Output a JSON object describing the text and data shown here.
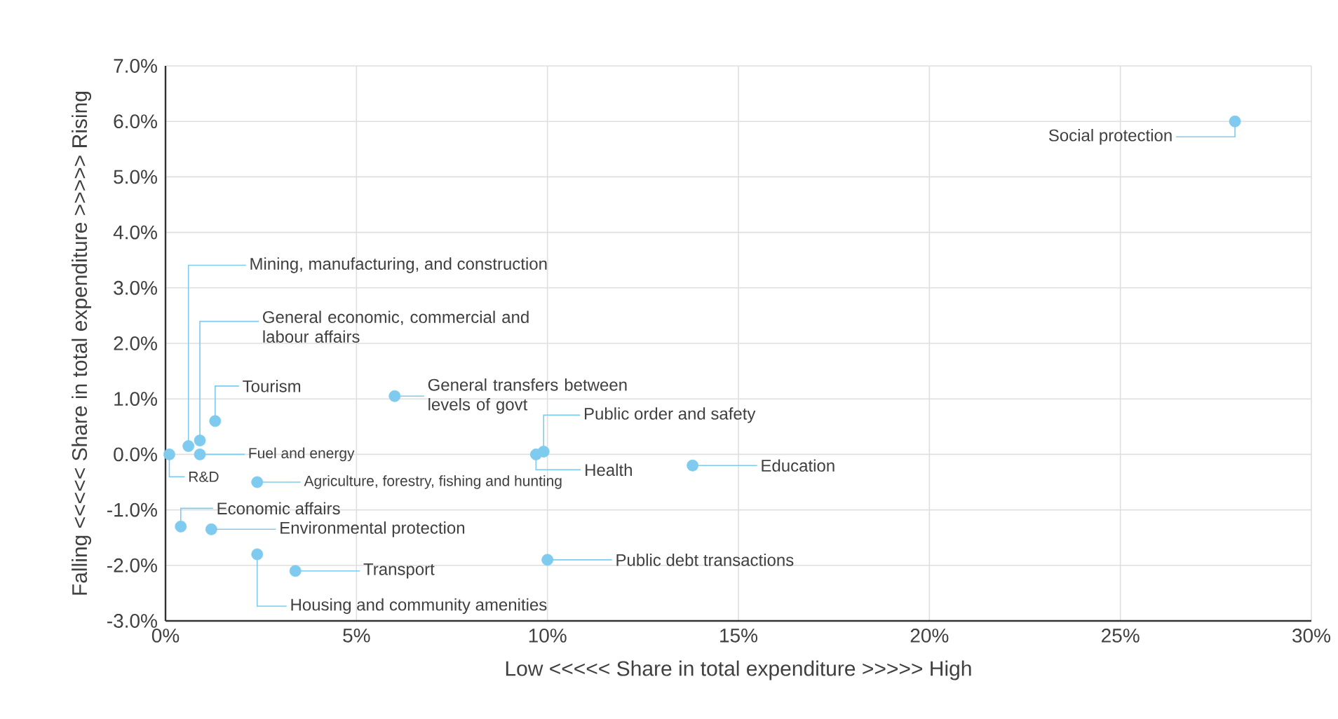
{
  "chart_data": {
    "type": "scatter",
    "xlabel": "Low <<<<< Share in total expenditure >>>>> High",
    "ylabel": "Falling <<<<< Share in total expenditure >>>>> Rising",
    "x": [
      28.0,
      0.6,
      0.9,
      1.3,
      0.9,
      0.1,
      2.4,
      0.4,
      1.2,
      2.4,
      3.4,
      6.0,
      9.9,
      9.7,
      13.8,
      10.0
    ],
    "values": [
      6.0,
      0.15,
      0.25,
      0.6,
      0.0,
      0.0,
      -0.5,
      -1.3,
      -1.35,
      -1.8,
      -2.1,
      1.05,
      0.05,
      0.0,
      -0.2,
      -1.9
    ],
    "color": "#7ecbef",
    "marker": "circle",
    "grid": true,
    "xlim": [
      0,
      30
    ],
    "ylim": [
      -3,
      7
    ],
    "xticks": [
      {
        "value": 0,
        "label": "0%"
      },
      {
        "value": 5,
        "label": "5%"
      },
      {
        "value": 10,
        "label": "10%"
      },
      {
        "value": 15,
        "label": "15%"
      },
      {
        "value": 20,
        "label": "20%"
      },
      {
        "value": 25,
        "label": "25%"
      },
      {
        "value": 30,
        "label": "30%"
      }
    ],
    "yticks": [
      {
        "value": -3,
        "label": "-3.0%"
      },
      {
        "value": -2,
        "label": "-2.0%"
      },
      {
        "value": -1,
        "label": "-1.0%"
      },
      {
        "value": 0,
        "label": "0.0%"
      },
      {
        "value": 1,
        "label": "1.0%"
      },
      {
        "value": 2,
        "label": "2.0%"
      },
      {
        "value": 3,
        "label": "3.0%"
      },
      {
        "value": 4,
        "label": "4.0%"
      },
      {
        "value": 5,
        "label": "5.0%"
      },
      {
        "value": 6,
        "label": "6.0%"
      },
      {
        "value": 7,
        "label": "7.0%"
      }
    ],
    "annotations": [
      {
        "text": "Social protection",
        "x": 28.0,
        "y": 6.0
      },
      {
        "text": "Mining, manufacturing, and construction",
        "x": 0.6,
        "y": 0.15
      },
      {
        "text": "General economic, commercial and labour affairs",
        "x": 0.9,
        "y": 0.25
      },
      {
        "text": "Tourism",
        "x": 1.3,
        "y": 0.6
      },
      "Fuel and energy",
      {
        "text": "R&D",
        "x": 0.1,
        "y": 0.0
      },
      "Agriculture, forestry, fishing and hunting",
      {
        "text": "Economic affairs",
        "x": 0.4,
        "y": -1.3
      },
      "Environmental protection",
      {
        "text": "Housing and community amenities",
        "x": 2.4,
        "y": -1.8
      },
      "Transport",
      {
        "text": "General transfers between levels of govt",
        "x": 6.0,
        "y": 1.05
      },
      {
        "text": "Public order and safety",
        "x": 9.9,
        "y": 0.05
      },
      {
        "text": "Health",
        "x": 9.7,
        "y": 0.0
      },
      "Education",
      "Public debt transactions"
    ]
  }
}
